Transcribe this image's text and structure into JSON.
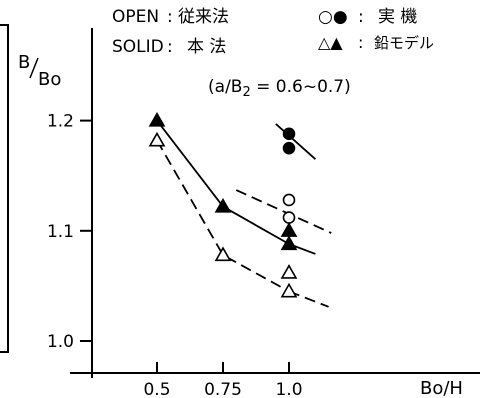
{
  "chart_data": {
    "type": "line",
    "ylabel_main": "B",
    "ylabel_sub": "Bo",
    "xlabel": "Bo/H",
    "ylim": [
      0.97,
      1.24
    ],
    "xlim": [
      0.3,
      1.2
    ],
    "y_ticks": [
      {
        "value": 1.0,
        "label": "1.0"
      },
      {
        "value": 1.1,
        "label": "1.1"
      },
      {
        "value": 1.2,
        "label": "1.2"
      }
    ],
    "x_ticks": [
      {
        "value": 0.5,
        "label": "0.5"
      },
      {
        "value": 0.75,
        "label": "0.75"
      },
      {
        "value": 1.0,
        "label": "1.0"
      }
    ],
    "legend": {
      "open_label": "OPEN",
      "open_text": "従来法",
      "solid_label": "SOLID",
      "solid_text": "本 法",
      "sep": ":",
      "circle_symbols": "○●",
      "circle_text": "実 機",
      "triangle_symbols": "△▲",
      "triangle_text": "鉛モデル"
    },
    "annotation": "(a/B2 = 0.6~0.7)",
    "annotation_parts": {
      "open": "(",
      "a": "a",
      "slash": "/",
      "b": "B",
      "sub": "2",
      "rest": " = 0.6~0.7)"
    },
    "series": [
      {
        "key": "model_solid",
        "marker": "triangle",
        "fill": "solid",
        "line": "solid",
        "x": [
          0.5,
          0.75,
          1.0
        ],
        "y": [
          1.2,
          1.122,
          1.088
        ]
      },
      {
        "key": "model_open",
        "marker": "triangle",
        "fill": "open",
        "line": "dashed",
        "x": [
          0.5,
          0.75,
          1.0
        ],
        "y": [
          1.182,
          1.078,
          1.045
        ]
      }
    ],
    "points_at_1": [
      {
        "key": "machine_solid_a",
        "marker": "circle",
        "fill": "solid",
        "y": 1.188
      },
      {
        "key": "machine_solid_b",
        "marker": "circle",
        "fill": "solid",
        "y": 1.175
      },
      {
        "key": "machine_open_a",
        "marker": "circle",
        "fill": "open",
        "y": 1.128
      },
      {
        "key": "machine_open_b",
        "marker": "circle",
        "fill": "open",
        "y": 1.112
      },
      {
        "key": "model_solid_b",
        "marker": "triangle",
        "fill": "solid",
        "y": 1.1
      },
      {
        "key": "model_solid_a",
        "marker": "triangle",
        "fill": "solid",
        "y": 1.088
      },
      {
        "key": "model_open_b",
        "marker": "triangle",
        "fill": "open",
        "y": 1.062
      },
      {
        "key": "model_open_a",
        "marker": "triangle",
        "fill": "open",
        "y": 1.045
      }
    ],
    "trend_segments": [
      {
        "key": "machine_solid",
        "line": "solid",
        "x": [
          0.95,
          1.1
        ],
        "y": [
          1.197,
          1.165
        ]
      },
      {
        "key": "machine_open",
        "line": "dashed",
        "x": [
          0.8,
          1.16
        ],
        "y": [
          1.137,
          1.098
        ]
      },
      {
        "key": "model_solid_tail",
        "line": "solid",
        "x": [
          1.0,
          1.1
        ],
        "y": [
          1.088,
          1.079
        ]
      },
      {
        "key": "model_open_tail",
        "line": "dashed",
        "x": [
          1.0,
          1.15
        ],
        "y": [
          1.045,
          1.031
        ]
      }
    ]
  }
}
